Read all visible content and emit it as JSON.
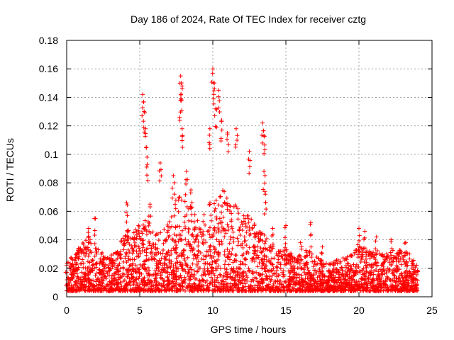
{
  "chart_data": {
    "type": "scatter",
    "title": "Day 186 of 2024, Rate Of TEC Index for receiver cztg",
    "xlabel": "GPS time / hours",
    "ylabel": "ROTI / TECUs",
    "xlim": [
      0,
      25
    ],
    "ylim": [
      0,
      0.18
    ],
    "x_ticks": [
      0,
      5,
      10,
      15,
      20,
      25
    ],
    "y_ticks": [
      0,
      0.02,
      0.04,
      0.06,
      0.08,
      0.1,
      0.12,
      0.14,
      0.16,
      0.18
    ],
    "x_tick_labels": [
      "0",
      "5",
      "10",
      "15",
      "20",
      "25"
    ],
    "y_tick_labels": [
      "0",
      "0.02",
      "0.04",
      "0.06",
      "0.08",
      "0.1",
      "0.12",
      "0.14",
      "0.16",
      "0.18"
    ],
    "grid": true,
    "marker": "+",
    "marker_color": "#ff0000",
    "data_time_range": [
      0,
      24
    ],
    "series": [
      {
        "name": "ROTI",
        "description_points": [
          {
            "x": 0.0,
            "y": 0.022
          },
          {
            "x": 0.8,
            "y": 0.034
          },
          {
            "x": 1.5,
            "y": 0.048
          },
          {
            "x": 1.9,
            "y": 0.055
          },
          {
            "x": 2.5,
            "y": 0.028
          },
          {
            "x": 3.2,
            "y": 0.03
          },
          {
            "x": 4.1,
            "y": 0.066
          },
          {
            "x": 4.6,
            "y": 0.045
          },
          {
            "x": 5.2,
            "y": 0.142
          },
          {
            "x": 5.3,
            "y": 0.13
          },
          {
            "x": 5.4,
            "y": 0.118
          },
          {
            "x": 5.5,
            "y": 0.098
          },
          {
            "x": 5.7,
            "y": 0.065
          },
          {
            "x": 6.4,
            "y": 0.094
          },
          {
            "x": 7.3,
            "y": 0.085
          },
          {
            "x": 7.8,
            "y": 0.155
          },
          {
            "x": 7.9,
            "y": 0.148
          },
          {
            "x": 7.8,
            "y": 0.138
          },
          {
            "x": 7.9,
            "y": 0.118
          },
          {
            "x": 8.2,
            "y": 0.088
          },
          {
            "x": 8.5,
            "y": 0.075
          },
          {
            "x": 9.8,
            "y": 0.118
          },
          {
            "x": 10.0,
            "y": 0.16
          },
          {
            "x": 10.1,
            "y": 0.15
          },
          {
            "x": 10.2,
            "y": 0.132
          },
          {
            "x": 10.4,
            "y": 0.145
          },
          {
            "x": 10.6,
            "y": 0.124
          },
          {
            "x": 11.0,
            "y": 0.115
          },
          {
            "x": 11.6,
            "y": 0.118
          },
          {
            "x": 12.5,
            "y": 0.102
          },
          {
            "x": 13.4,
            "y": 0.122
          },
          {
            "x": 13.5,
            "y": 0.113
          },
          {
            "x": 13.5,
            "y": 0.088
          },
          {
            "x": 13.6,
            "y": 0.072
          },
          {
            "x": 14.1,
            "y": 0.048
          },
          {
            "x": 15.0,
            "y": 0.05
          },
          {
            "x": 16.0,
            "y": 0.038
          },
          {
            "x": 16.7,
            "y": 0.052
          },
          {
            "x": 17.5,
            "y": 0.035
          },
          {
            "x": 19.2,
            "y": 0.028
          },
          {
            "x": 20.0,
            "y": 0.048
          },
          {
            "x": 20.4,
            "y": 0.046
          },
          {
            "x": 21.2,
            "y": 0.042
          },
          {
            "x": 22.2,
            "y": 0.04
          },
          {
            "x": 23.2,
            "y": 0.038
          },
          {
            "x": 24.0,
            "y": 0.018
          }
        ]
      }
    ]
  }
}
